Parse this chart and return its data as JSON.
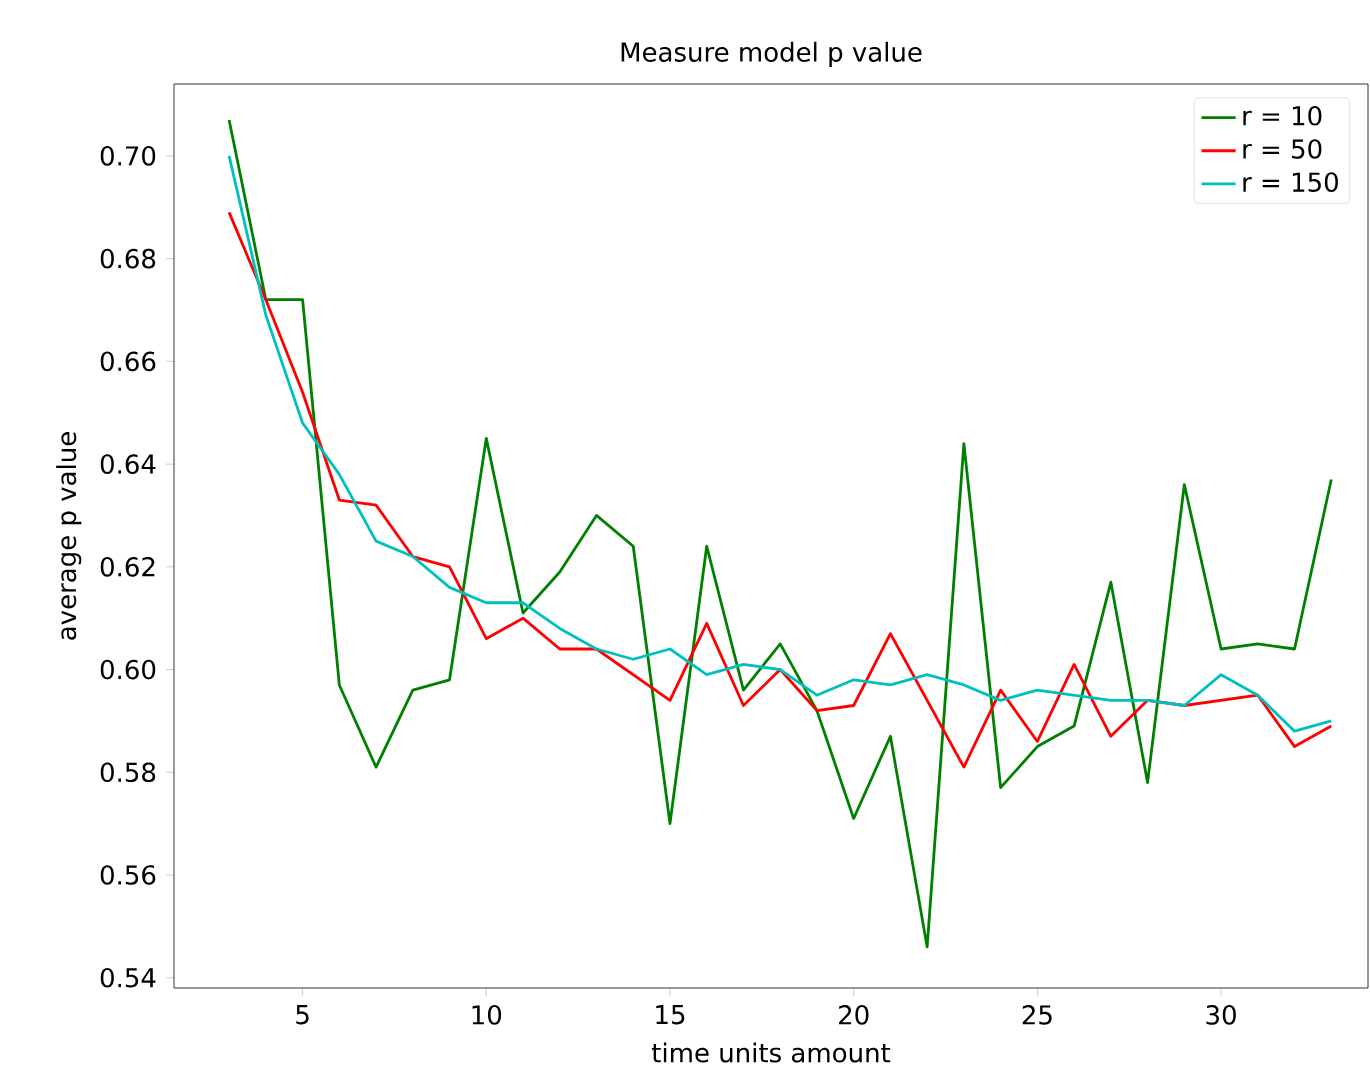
{
  "chart_data": {
    "type": "line",
    "title": "Measure model p value",
    "xlabel": "time units amount",
    "ylabel": "average p value",
    "x": [
      3,
      4,
      5,
      6,
      7,
      8,
      9,
      10,
      11,
      12,
      13,
      14,
      15,
      16,
      17,
      18,
      19,
      20,
      21,
      22,
      23,
      24,
      25,
      26,
      27,
      28,
      29,
      30,
      31,
      32,
      33
    ],
    "series": [
      {
        "name": "r = 10",
        "color": "#008000",
        "values": [
          0.707,
          0.672,
          0.672,
          0.597,
          0.581,
          0.596,
          0.598,
          0.645,
          0.611,
          0.619,
          0.63,
          0.624,
          0.57,
          0.624,
          0.596,
          0.605,
          0.592,
          0.571,
          0.587,
          0.546,
          0.644,
          0.577,
          0.585,
          0.589,
          0.617,
          0.578,
          0.636,
          0.604,
          0.605,
          0.604,
          0.637
        ]
      },
      {
        "name": "r = 50",
        "color": "#ff0000",
        "values": [
          0.689,
          0.672,
          0.654,
          0.633,
          0.632,
          0.622,
          0.62,
          0.606,
          0.61,
          0.604,
          0.604,
          0.599,
          0.594,
          0.609,
          0.593,
          0.6,
          0.592,
          0.593,
          0.607,
          0.594,
          0.581,
          0.596,
          0.586,
          0.601,
          0.587,
          0.594,
          0.593,
          0.594,
          0.595,
          0.585,
          0.589
        ]
      },
      {
        "name": "r = 150",
        "color": "#00bfbf",
        "values": [
          0.7,
          0.669,
          0.648,
          0.638,
          0.625,
          0.622,
          0.616,
          0.613,
          0.613,
          0.608,
          0.604,
          0.602,
          0.604,
          0.599,
          0.601,
          0.6,
          0.595,
          0.598,
          0.597,
          0.599,
          0.597,
          0.594,
          0.596,
          0.595,
          0.594,
          0.594,
          0.593,
          0.599,
          0.595,
          0.588,
          0.59
        ]
      }
    ],
    "xlim": [
      1.5,
      34
    ],
    "ylim": [
      0.538,
      0.714
    ],
    "xticks": [
      5,
      10,
      15,
      20,
      25,
      30
    ],
    "yticks": [
      0.54,
      0.56,
      0.58,
      {
        "value": 0.6,
        "label": "0.60"
      },
      0.62,
      0.64,
      0.66,
      0.68,
      {
        "value": 0.7,
        "label": "0.70"
      }
    ],
    "legend": "top right"
  }
}
